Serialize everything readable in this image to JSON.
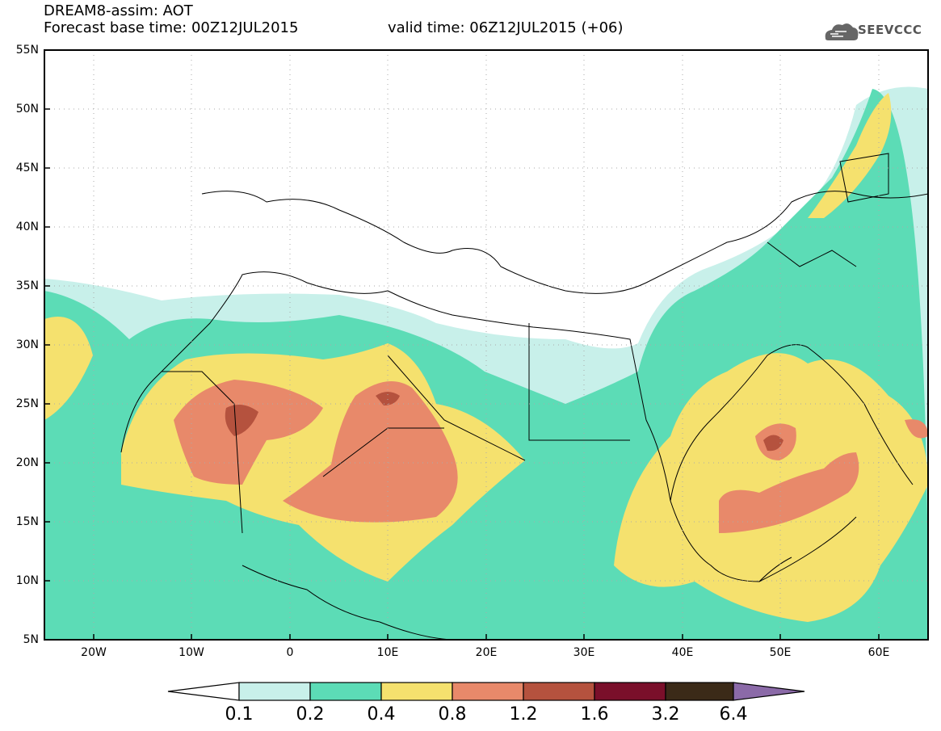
{
  "header": {
    "title": "DREAM8-assim: AOT",
    "base_time": "Forecast base time: 00Z12JUL2015",
    "valid_time": "valid time: 06Z12JUL2015 (+06)",
    "logo_text": "SEEVCCC"
  },
  "axes": {
    "lat_labels": [
      "55N",
      "50N",
      "45N",
      "40N",
      "35N",
      "30N",
      "25N",
      "20N",
      "15N",
      "10N",
      "5N"
    ],
    "lon_labels": [
      "20W",
      "10W",
      "0",
      "10E",
      "20E",
      "30E",
      "40E",
      "50E",
      "60E"
    ]
  },
  "colorbar": {
    "labels": [
      "0.1",
      "0.2",
      "0.4",
      "0.8",
      "1.2",
      "1.6",
      "3.2",
      "6.4"
    ],
    "colors": [
      "#c8f0ea",
      "#5cdcb6",
      "#f5e16e",
      "#e8896a",
      "#b5523e",
      "#7a0f2a",
      "#3b2a18",
      "#8b6aa8"
    ]
  },
  "palette": {
    "very_light": "#c8f0ea",
    "light": "#5cdcb6",
    "medium": "#f5e16e",
    "high": "#e8896a",
    "very_high": "#b5523e"
  }
}
